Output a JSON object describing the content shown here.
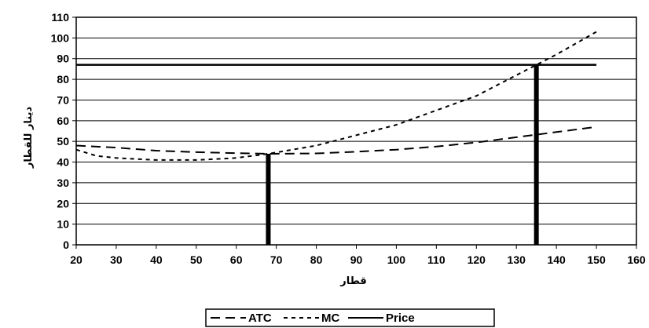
{
  "chart_data": {
    "type": "line",
    "xlabel": "قطار",
    "ylabel": "دینار للقطار",
    "xlim": [
      20,
      160
    ],
    "ylim": [
      0,
      110
    ],
    "x_ticks": [
      20,
      30,
      40,
      50,
      60,
      70,
      80,
      90,
      100,
      110,
      120,
      130,
      140,
      150,
      160
    ],
    "y_ticks": [
      0,
      10,
      20,
      30,
      40,
      50,
      60,
      70,
      80,
      90,
      100,
      110
    ],
    "grid": "horizontal",
    "legend_position": "bottom",
    "series": [
      {
        "name": "ATC",
        "style": "dashed",
        "color": "#000000",
        "x": [
          20,
          30,
          40,
          50,
          60,
          68,
          80,
          90,
          100,
          110,
          120,
          130,
          140,
          150
        ],
        "y": [
          48,
          47,
          45.5,
          44.8,
          44.3,
          44,
          44.2,
          45,
          46,
          47.5,
          49.5,
          52,
          54.5,
          57
        ]
      },
      {
        "name": "MC",
        "style": "dotted",
        "color": "#000000",
        "x": [
          20,
          25,
          30,
          40,
          50,
          60,
          68,
          80,
          90,
          100,
          110,
          120,
          130,
          135,
          140,
          150
        ],
        "y": [
          46,
          43,
          42,
          41,
          41,
          42,
          44,
          48,
          53,
          58,
          65,
          72,
          82,
          87,
          92,
          103
        ]
      },
      {
        "name": "Price",
        "style": "solid",
        "color": "#000000",
        "x": [
          20,
          150
        ],
        "y": [
          87,
          87
        ]
      }
    ],
    "vertical_markers": [
      68,
      135
    ]
  }
}
